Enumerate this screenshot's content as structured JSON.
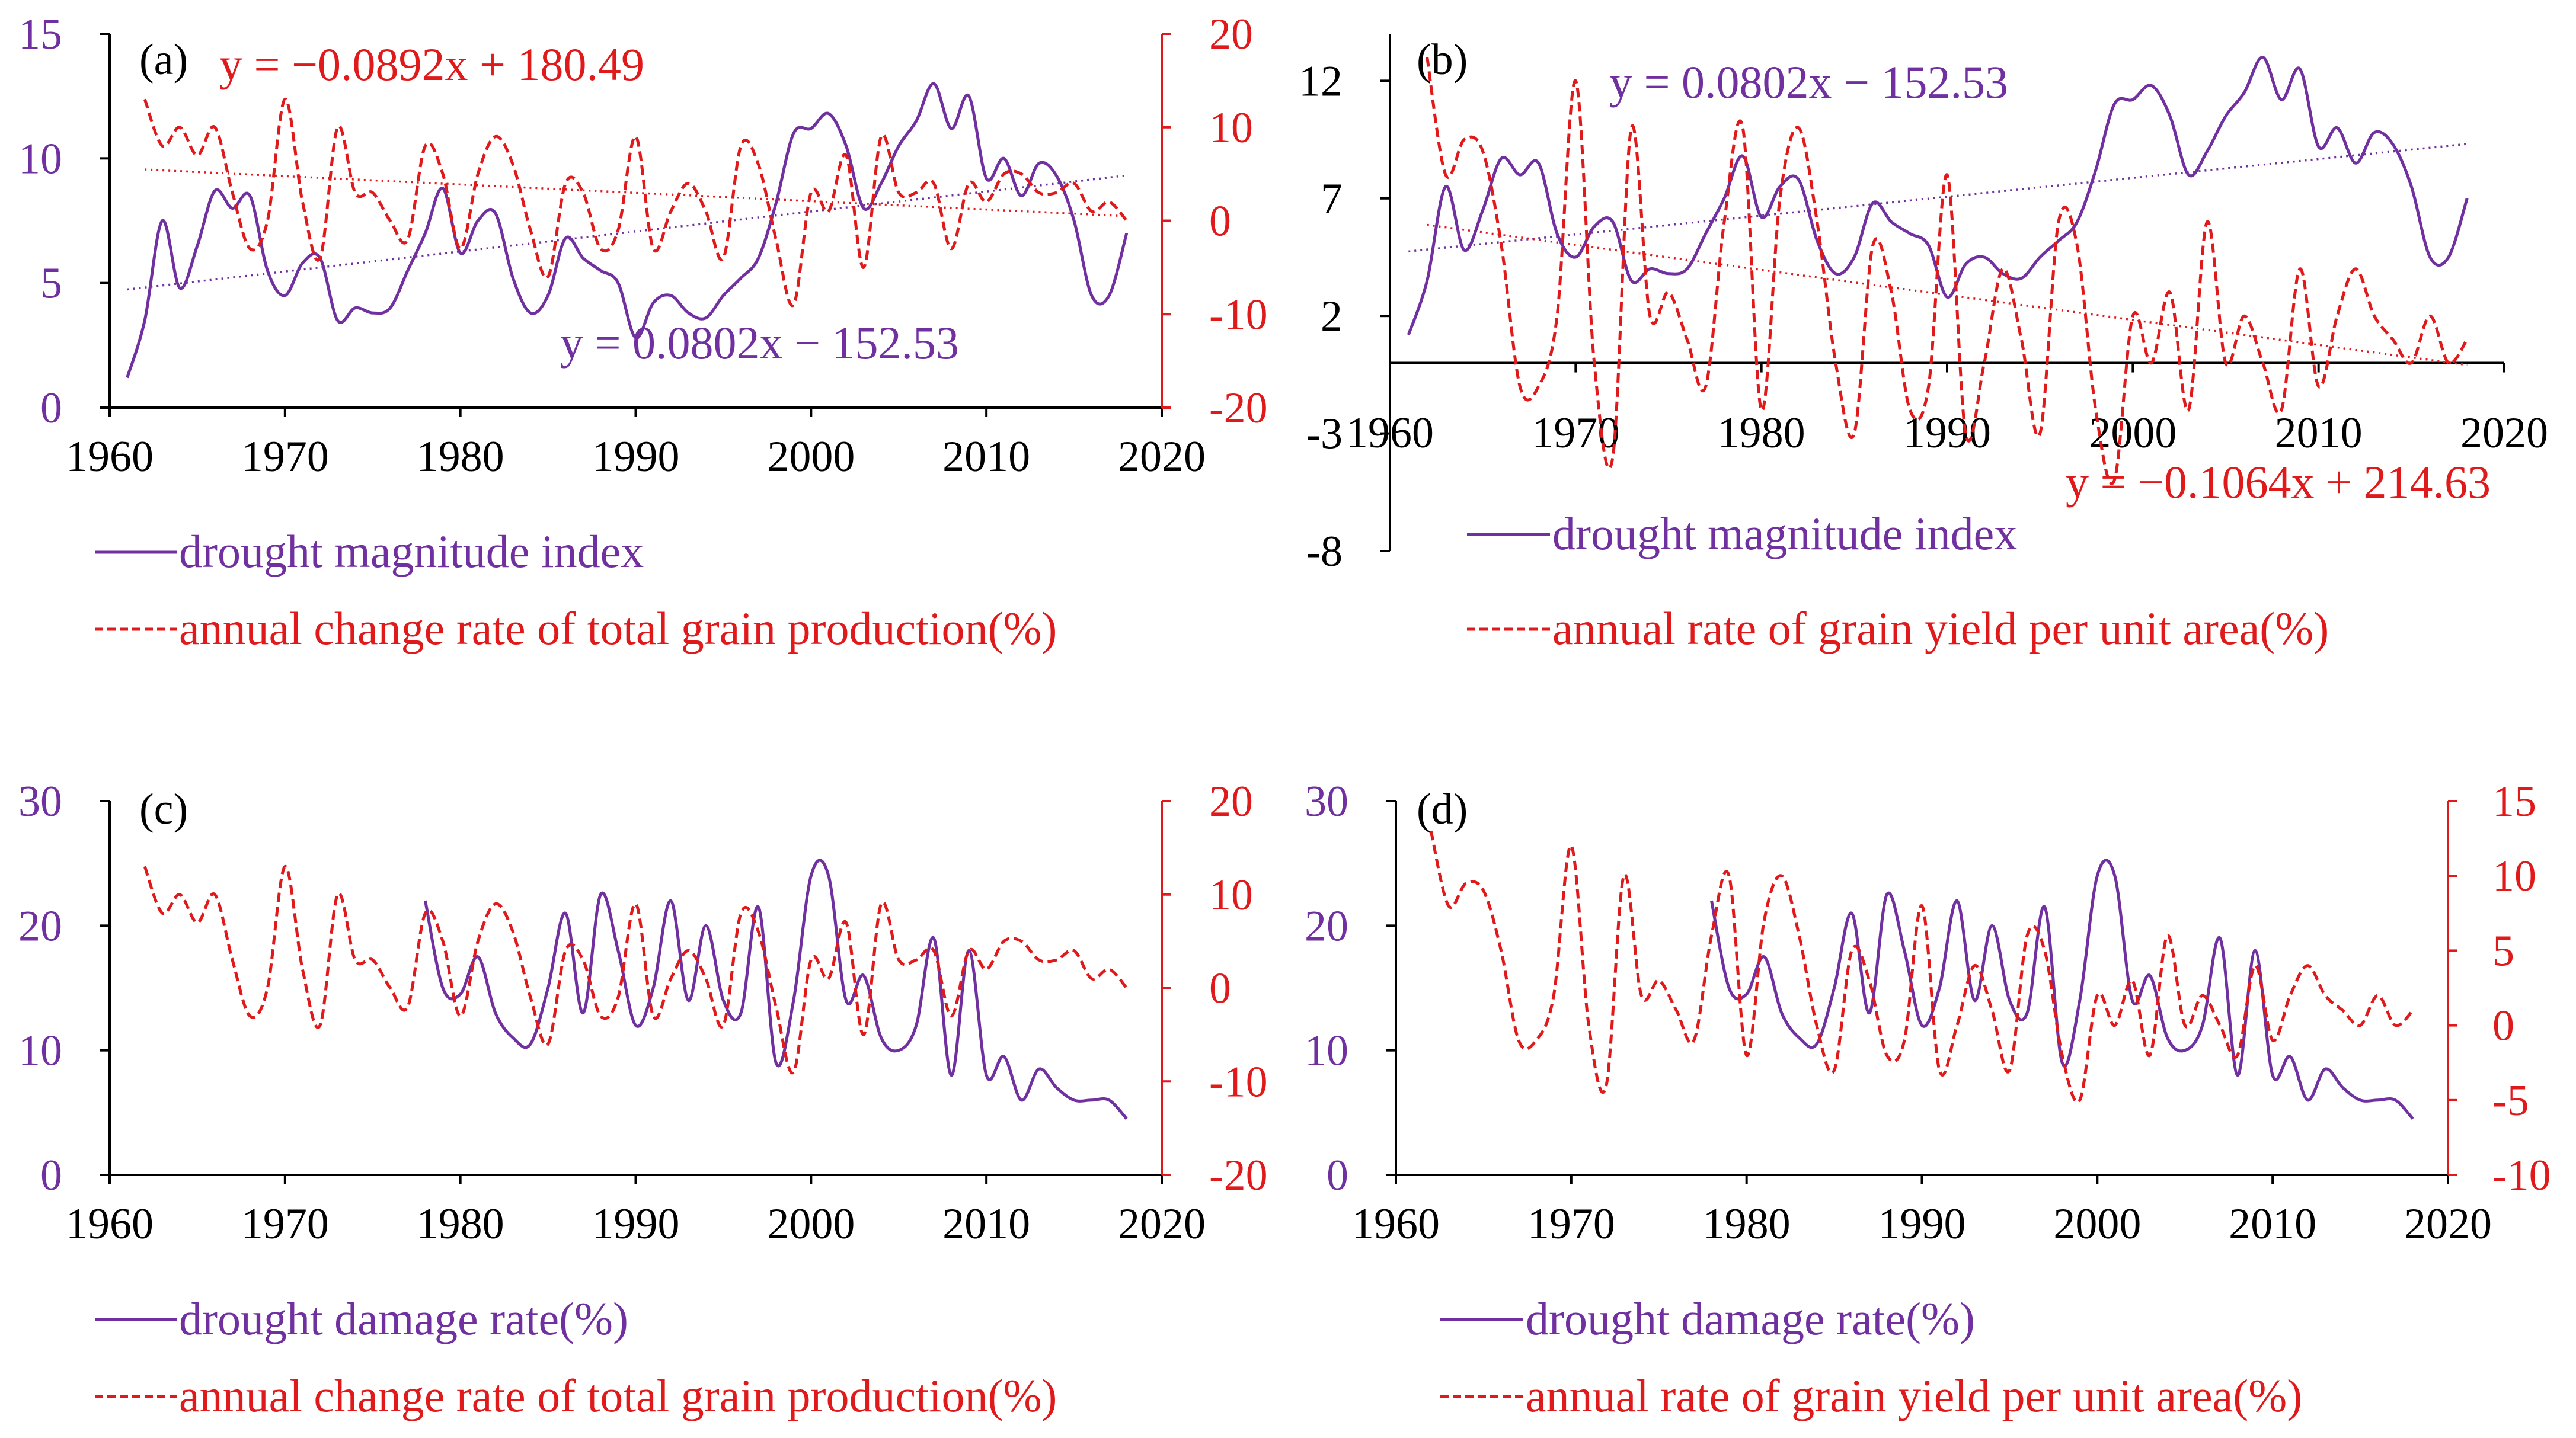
{
  "colors": {
    "purple": "#7030A0",
    "red": "#E0191B",
    "axis": "#000000"
  },
  "chart_data": [
    {
      "type": "line",
      "panel_label": "(a)",
      "xlim": [
        1960,
        2020
      ],
      "x_ticks": [
        1960,
        1970,
        1980,
        1990,
        2000,
        2010,
        2020
      ],
      "ylim_left": [
        0,
        15
      ],
      "y_ticks_left": [
        0,
        5,
        10,
        15
      ],
      "ylim_right": [
        -20,
        20
      ],
      "y_ticks_right": [
        -20,
        -10,
        0,
        10,
        20
      ],
      "left_series": {
        "name": "drought magnitude index",
        "x": [
          1961,
          1962,
          1963,
          1964,
          1965,
          1966,
          1967,
          1968,
          1969,
          1970,
          1971,
          1972,
          1973,
          1974,
          1975,
          1976,
          1977,
          1978,
          1979,
          1980,
          1981,
          1982,
          1983,
          1984,
          1985,
          1986,
          1987,
          1988,
          1989,
          1990,
          1991,
          1992,
          1993,
          1994,
          1995,
          1996,
          1997,
          1998,
          1999,
          2000,
          2001,
          2002,
          2003,
          2004,
          2005,
          2006,
          2007,
          2008,
          2009,
          2010,
          2011,
          2012,
          2013,
          2014,
          2015,
          2016,
          2017,
          2018
        ],
        "y": [
          1.2,
          3.5,
          7.5,
          4.8,
          6.5,
          8.7,
          8.0,
          8.5,
          5.5,
          4.5,
          5.8,
          6.0,
          3.5,
          4.0,
          3.8,
          4.0,
          5.5,
          7.0,
          8.8,
          6.2,
          7.5,
          7.8,
          5.2,
          3.8,
          4.5,
          6.8,
          6.0,
          5.5,
          5.0,
          2.8,
          4.2,
          4.5,
          3.8,
          3.6,
          4.5,
          5.2,
          6.0,
          8.2,
          11.0,
          11.2,
          11.8,
          10.5,
          8.0,
          9.0,
          10.5,
          11.5,
          13.0,
          11.2,
          12.5,
          9.2,
          10.0,
          8.5,
          9.8,
          9.3,
          7.5,
          4.5,
          4.5,
          7.0
        ]
      },
      "right_series": {
        "name": "annual change rate of total grain production(%)",
        "x": [
          1962,
          1963,
          1964,
          1965,
          1966,
          1967,
          1968,
          1969,
          1970,
          1971,
          1972,
          1973,
          1974,
          1975,
          1976,
          1977,
          1978,
          1979,
          1980,
          1981,
          1982,
          1983,
          1984,
          1985,
          1986,
          1987,
          1988,
          1989,
          1990,
          1991,
          1992,
          1993,
          1994,
          1995,
          1996,
          1997,
          1998,
          1999,
          2000,
          2001,
          2002,
          2003,
          2004,
          2005,
          2006,
          2007,
          2008,
          2009,
          2010,
          2011,
          2012,
          2013,
          2014,
          2015,
          2016,
          2017,
          2018
        ],
        "y": [
          13,
          8,
          10,
          7,
          10,
          3,
          -3,
          0,
          13,
          2,
          -4,
          10,
          3,
          3,
          0,
          -2,
          8,
          5,
          -3,
          5,
          9,
          6,
          -1,
          -6,
          4,
          3,
          -3,
          -1,
          9,
          -3,
          1,
          4,
          1,
          -4,
          8,
          6,
          -2,
          -9,
          3,
          1,
          7,
          -5,
          9,
          3,
          3,
          4,
          -3,
          4,
          2,
          5,
          5,
          3,
          3,
          4,
          1,
          2,
          0
        ],
        "trendline": {
          "slope": -0.0892,
          "intercept": 180.49,
          "label": "y = −0.0892x + 180.49"
        }
      },
      "left_trendline": {
        "slope": 0.0802,
        "intercept": -152.53,
        "label": "y = 0.0802x − 152.53"
      },
      "legend": [
        "drought magnitude index",
        "annual change rate of total grain production(%)"
      ]
    },
    {
      "type": "line",
      "panel_label": "(b)",
      "xlim": [
        1960,
        2020
      ],
      "x_ticks": [
        1960,
        1970,
        1980,
        1990,
        2000,
        2010,
        2020
      ],
      "ylim_left": [
        -8,
        14
      ],
      "y_ticks_left": [
        -8,
        -3,
        2,
        7,
        12
      ],
      "left_series": {
        "name": "drought magnitude index",
        "x": [
          1961,
          1962,
          1963,
          1964,
          1965,
          1966,
          1967,
          1968,
          1969,
          1970,
          1971,
          1972,
          1973,
          1974,
          1975,
          1976,
          1977,
          1978,
          1979,
          1980,
          1981,
          1982,
          1983,
          1984,
          1985,
          1986,
          1987,
          1988,
          1989,
          1990,
          1991,
          1992,
          1993,
          1994,
          1995,
          1996,
          1997,
          1998,
          1999,
          2000,
          2001,
          2002,
          2003,
          2004,
          2005,
          2006,
          2007,
          2008,
          2009,
          2010,
          2011,
          2012,
          2013,
          2014,
          2015,
          2016,
          2017,
          2018
        ],
        "y": [
          1.2,
          3.5,
          7.5,
          4.8,
          6.5,
          8.7,
          8.0,
          8.5,
          5.5,
          4.5,
          5.8,
          6.0,
          3.5,
          4.0,
          3.8,
          4.0,
          5.5,
          7.0,
          8.8,
          6.2,
          7.5,
          7.8,
          5.2,
          3.8,
          4.5,
          6.8,
          6.0,
          5.5,
          5.0,
          2.8,
          4.2,
          4.5,
          3.8,
          3.6,
          4.5,
          5.2,
          6.0,
          8.2,
          11.0,
          11.2,
          11.8,
          10.5,
          8.0,
          9.0,
          10.5,
          11.5,
          13.0,
          11.2,
          12.5,
          9.2,
          10.0,
          8.5,
          9.8,
          9.3,
          7.5,
          4.5,
          4.5,
          7.0
        ]
      },
      "right_series": {
        "name": "annual rate of grain yield per unit area(%)",
        "x": [
          1962,
          1963,
          1964,
          1965,
          1966,
          1967,
          1968,
          1969,
          1970,
          1971,
          1972,
          1973,
          1974,
          1975,
          1976,
          1977,
          1978,
          1979,
          1980,
          1981,
          1982,
          1983,
          1984,
          1985,
          1986,
          1987,
          1988,
          1989,
          1990,
          1991,
          1992,
          1993,
          1994,
          1995,
          1996,
          1997,
          1998,
          1999,
          2000,
          2001,
          2002,
          2003,
          2004,
          2005,
          2006,
          2007,
          2008,
          2009,
          2010,
          2011,
          2012,
          2013,
          2014,
          2015,
          2016,
          2017,
          2018
        ],
        "y": [
          13,
          8,
          9.5,
          9,
          5,
          -1,
          -1,
          2,
          12,
          0,
          -4,
          10,
          2,
          3,
          1,
          -1,
          6,
          10,
          -2,
          7,
          10,
          6,
          0,
          -3,
          5,
          3,
          -2,
          -1,
          8,
          -3,
          0,
          4,
          1,
          -3,
          6,
          5,
          -2,
          -5,
          2,
          0,
          3,
          -2,
          6,
          0,
          2,
          0,
          -2,
          4,
          -1,
          2,
          4,
          2,
          1,
          0,
          2,
          0,
          1
        ],
        "trendline": {
          "slope": -0.1064,
          "intercept": 214.63,
          "label": "y = −0.1064x + 214.63"
        }
      },
      "left_trendline": {
        "slope": 0.0802,
        "intercept": -152.53,
        "label": "y = 0.0802x − 152.53"
      },
      "legend": [
        "drought magnitude index",
        "annual rate of grain yield per unit area(%)"
      ]
    },
    {
      "type": "line",
      "panel_label": "(c)",
      "xlim": [
        1960,
        2020
      ],
      "x_ticks": [
        1960,
        1970,
        1980,
        1990,
        2000,
        2010,
        2020
      ],
      "ylim_left": [
        0,
        30
      ],
      "y_ticks_left": [
        0,
        10,
        20,
        30
      ],
      "ylim_right": [
        -20,
        20
      ],
      "y_ticks_right": [
        -20,
        -10,
        0,
        10,
        20
      ],
      "left_series": {
        "name": "drought damage rate(%)",
        "x": [
          1978,
          1979,
          1980,
          1981,
          1982,
          1983,
          1984,
          1985,
          1986,
          1987,
          1988,
          1989,
          1990,
          1991,
          1992,
          1993,
          1994,
          1995,
          1996,
          1997,
          1998,
          1999,
          2000,
          2001,
          2002,
          2003,
          2004,
          2005,
          2006,
          2007,
          2008,
          2009,
          2010,
          2011,
          2012,
          2013,
          2014,
          2015,
          2016,
          2017,
          2018
        ],
        "y": [
          22,
          15,
          14.5,
          17.5,
          13,
          11,
          10.5,
          15,
          21,
          13,
          22.5,
          18,
          12,
          15,
          22,
          14,
          20,
          14,
          13,
          21.5,
          9,
          14,
          24,
          24,
          14,
          16,
          11,
          10,
          12,
          19,
          8,
          18,
          8,
          9.5,
          6,
          8.5,
          7,
          6,
          6,
          6,
          4.5
        ]
      },
      "right_series": {
        "name": "annual change rate of total grain production(%)",
        "x": [
          1962,
          1963,
          1964,
          1965,
          1966,
          1967,
          1968,
          1969,
          1970,
          1971,
          1972,
          1973,
          1974,
          1975,
          1976,
          1977,
          1978,
          1979,
          1980,
          1981,
          1982,
          1983,
          1984,
          1985,
          1986,
          1987,
          1988,
          1989,
          1990,
          1991,
          1992,
          1993,
          1994,
          1995,
          1996,
          1997,
          1998,
          1999,
          2000,
          2001,
          2002,
          2003,
          2004,
          2005,
          2006,
          2007,
          2008,
          2009,
          2010,
          2011,
          2012,
          2013,
          2014,
          2015,
          2016,
          2017,
          2018
        ],
        "y": [
          13,
          8,
          10,
          7,
          10,
          3,
          -3,
          0,
          13,
          2,
          -4,
          10,
          3,
          3,
          0,
          -2,
          8,
          5,
          -3,
          5,
          9,
          6,
          -1,
          -6,
          4,
          3,
          -3,
          -1,
          9,
          -3,
          1,
          4,
          1,
          -4,
          8,
          6,
          -2,
          -9,
          3,
          1,
          7,
          -5,
          9,
          3,
          3,
          4,
          -3,
          4,
          2,
          5,
          5,
          3,
          3,
          4,
          1,
          2,
          0
        ]
      },
      "legend": [
        "drought damage rate(%)",
        "annual change rate of total grain production(%)"
      ]
    },
    {
      "type": "line",
      "panel_label": "(d)",
      "xlim": [
        1960,
        2020
      ],
      "x_ticks": [
        1960,
        1970,
        1980,
        1990,
        2000,
        2010,
        2020
      ],
      "ylim_left": [
        0,
        30
      ],
      "y_ticks_left": [
        0,
        10,
        20,
        30
      ],
      "ylim_right": [
        -10,
        15
      ],
      "y_ticks_right": [
        -10,
        -5,
        0,
        5,
        10,
        15
      ],
      "left_series": {
        "name": "drought damage rate(%)",
        "x": [
          1978,
          1979,
          1980,
          1981,
          1982,
          1983,
          1984,
          1985,
          1986,
          1987,
          1988,
          1989,
          1990,
          1991,
          1992,
          1993,
          1994,
          1995,
          1996,
          1997,
          1998,
          1999,
          2000,
          2001,
          2002,
          2003,
          2004,
          2005,
          2006,
          2007,
          2008,
          2009,
          2010,
          2011,
          2012,
          2013,
          2014,
          2015,
          2016,
          2017,
          2018
        ],
        "y": [
          22,
          15,
          14.5,
          17.5,
          13,
          11,
          10.5,
          15,
          21,
          13,
          22.5,
          18,
          12,
          15,
          22,
          14,
          20,
          14,
          13,
          21.5,
          9,
          14,
          24,
          24,
          14,
          16,
          11,
          10,
          12,
          19,
          8,
          18,
          8,
          9.5,
          6,
          8.5,
          7,
          6,
          6,
          6,
          4.5
        ]
      },
      "right_series": {
        "name": "annual rate of grain yield per unit area(%)",
        "x": [
          1962,
          1963,
          1964,
          1965,
          1966,
          1967,
          1968,
          1969,
          1970,
          1971,
          1972,
          1973,
          1974,
          1975,
          1976,
          1977,
          1978,
          1979,
          1980,
          1981,
          1982,
          1983,
          1984,
          1985,
          1986,
          1987,
          1988,
          1989,
          1990,
          1991,
          1992,
          1993,
          1994,
          1995,
          1996,
          1997,
          1998,
          1999,
          2000,
          2001,
          2002,
          2003,
          2004,
          2005,
          2006,
          2007,
          2008,
          2009,
          2010,
          2011,
          2012,
          2013,
          2014,
          2015,
          2016,
          2017,
          2018
        ],
        "y": [
          13,
          8,
          9.5,
          9,
          5,
          -1,
          -1,
          2,
          12,
          0,
          -4,
          10,
          2,
          3,
          1,
          -1,
          6,
          10,
          -2,
          7,
          10,
          6,
          0,
          -3,
          5,
          3,
          -2,
          -1,
          8,
          -3,
          0,
          4,
          1,
          -3,
          6,
          5,
          -2,
          -5,
          2,
          0,
          3,
          -2,
          6,
          0,
          2,
          0,
          -2,
          4,
          -1,
          2,
          4,
          2,
          1,
          0,
          2,
          0,
          1
        ]
      },
      "legend": [
        "drought damage rate(%)",
        "annual rate of grain yield per unit area(%)"
      ]
    }
  ]
}
